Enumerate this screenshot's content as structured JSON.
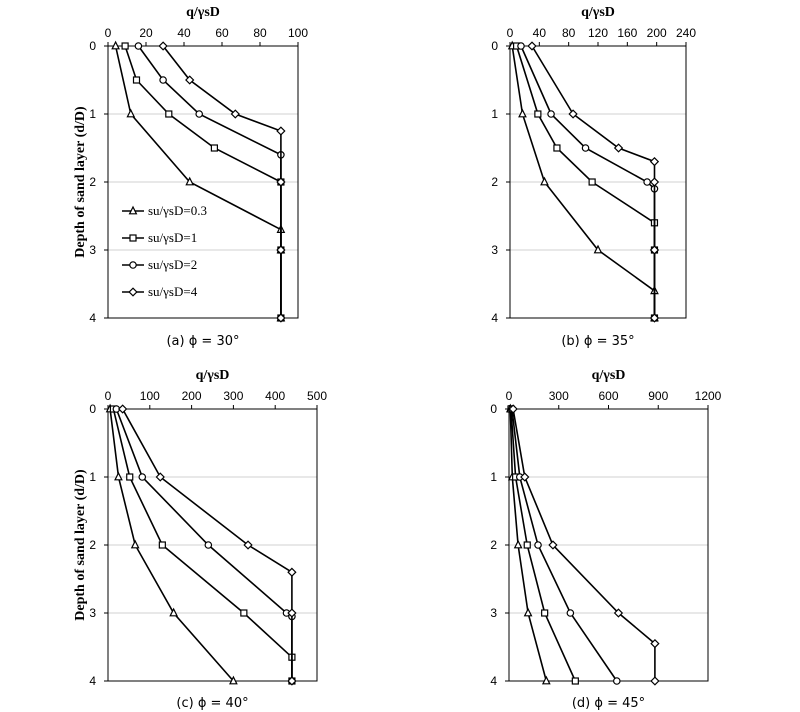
{
  "chart_data": [
    {
      "type": "line",
      "caption": "(a) ϕ = 30°",
      "xlabel": "q/γsD",
      "ylabel": "Depth of sand layer (d/D)",
      "xlim": [
        0,
        100
      ],
      "ylim": [
        0,
        4
      ],
      "xticks": [
        "0",
        "20",
        "40",
        "60",
        "80",
        "100"
      ],
      "yticks": [
        "0",
        "1",
        "2",
        "3",
        "4"
      ],
      "legend": "left-inside",
      "series": [
        {
          "name": "su/γsD=0.3",
          "marker": "triangle",
          "x": [
            4,
            12,
            43,
            91,
            91,
            91
          ],
          "y": [
            0,
            1,
            2,
            2.7,
            3,
            4
          ]
        },
        {
          "name": "su/γsD=1",
          "marker": "square",
          "x": [
            9,
            15,
            32,
            56,
            91,
            91,
            91
          ],
          "y": [
            0,
            0.5,
            1,
            1.5,
            2,
            3,
            4
          ]
        },
        {
          "name": "su/γsD=2",
          "marker": "circle",
          "x": [
            16,
            29,
            48,
            91,
            91,
            91
          ],
          "y": [
            0,
            0.5,
            1,
            1.6,
            3,
            4
          ]
        },
        {
          "name": "su/γsD=4",
          "marker": "diamond",
          "x": [
            29,
            43,
            67,
            91,
            91,
            91,
            91
          ],
          "y": [
            0,
            0.5,
            1,
            1.25,
            2,
            3,
            4
          ]
        }
      ]
    },
    {
      "type": "line",
      "caption": "(b) ϕ = 35°",
      "xlabel": "q/γsD",
      "ylabel": "",
      "xlim": [
        0,
        240
      ],
      "ylim": [
        0,
        4
      ],
      "xticks": [
        "0",
        "40",
        "80",
        "120",
        "160",
        "200",
        "240"
      ],
      "yticks": [
        "0",
        "1",
        "2",
        "3",
        "4"
      ],
      "legend": "none",
      "series": [
        {
          "name": "su/γsD=0.3",
          "marker": "triangle",
          "x": [
            3,
            17,
            47,
            120,
            197,
            197
          ],
          "y": [
            0,
            1,
            2,
            3,
            3.6,
            4
          ]
        },
        {
          "name": "su/γsD=1",
          "marker": "square",
          "x": [
            9,
            38,
            64,
            112,
            197,
            197,
            197
          ],
          "y": [
            0,
            1,
            1.5,
            2,
            2.6,
            3,
            4
          ]
        },
        {
          "name": "su/γsD=2",
          "marker": "circle",
          "x": [
            15,
            56,
            103,
            187,
            197,
            197,
            197
          ],
          "y": [
            0,
            1,
            1.5,
            2,
            2.1,
            3,
            4
          ]
        },
        {
          "name": "su/γsD=4",
          "marker": "diamond",
          "x": [
            30,
            86,
            148,
            197,
            197,
            197,
            197
          ],
          "y": [
            0,
            1,
            1.5,
            1.7,
            2,
            3,
            4
          ]
        }
      ]
    },
    {
      "type": "line",
      "caption": "(c) ϕ = 40°",
      "xlabel": "q/γsD",
      "ylabel": "Depth of sand layer (d/D)",
      "xlim": [
        0,
        500
      ],
      "ylim": [
        0,
        4
      ],
      "xticks": [
        "0",
        "100",
        "200",
        "300",
        "400",
        "500"
      ],
      "yticks": [
        "0",
        "1",
        "2",
        "3",
        "4"
      ],
      "legend": "none",
      "series": [
        {
          "name": "su/γsD=0.3",
          "marker": "triangle",
          "x": [
            5,
            25,
            65,
            157,
            300
          ],
          "y": [
            0,
            1,
            2,
            3,
            4
          ]
        },
        {
          "name": "su/γsD=1",
          "marker": "square",
          "x": [
            13,
            52,
            130,
            325,
            440,
            440
          ],
          "y": [
            0,
            1,
            2,
            3,
            3.65,
            4
          ]
        },
        {
          "name": "su/γsD=2",
          "marker": "circle",
          "x": [
            20,
            82,
            240,
            427,
            440,
            440
          ],
          "y": [
            0,
            1,
            2,
            3,
            3.05,
            4
          ]
        },
        {
          "name": "su/γsD=4",
          "marker": "diamond",
          "x": [
            35,
            125,
            335,
            440,
            440,
            440
          ],
          "y": [
            0,
            1,
            2,
            2.4,
            3,
            4
          ]
        }
      ]
    },
    {
      "type": "line",
      "caption": "(d) ϕ = 45°",
      "xlabel": "q/γsD",
      "ylabel": "",
      "xlim": [
        0,
        1200
      ],
      "ylim": [
        0,
        4
      ],
      "xticks": [
        "0",
        "300",
        "600",
        "900",
        "1200"
      ],
      "yticks": [
        "0",
        "1",
        "2",
        "3",
        "4"
      ],
      "legend": "none",
      "series": [
        {
          "name": "su/γsD=0.3",
          "marker": "triangle",
          "x": [
            8,
            20,
            55,
            115,
            225
          ],
          "y": [
            0,
            1,
            2,
            3,
            4
          ]
        },
        {
          "name": "su/γsD=1",
          "marker": "square",
          "x": [
            12,
            40,
            110,
            215,
            400
          ],
          "y": [
            0,
            1,
            2,
            3,
            4
          ]
        },
        {
          "name": "su/γsD=2",
          "marker": "circle",
          "x": [
            18,
            65,
            175,
            370,
            650
          ],
          "y": [
            0,
            1,
            2,
            3,
            4
          ]
        },
        {
          "name": "su/γsD=4",
          "marker": "diamond",
          "x": [
            25,
            95,
            265,
            660,
            880,
            880
          ],
          "y": [
            0,
            1,
            2,
            3,
            3.45,
            4
          ]
        }
      ]
    }
  ]
}
